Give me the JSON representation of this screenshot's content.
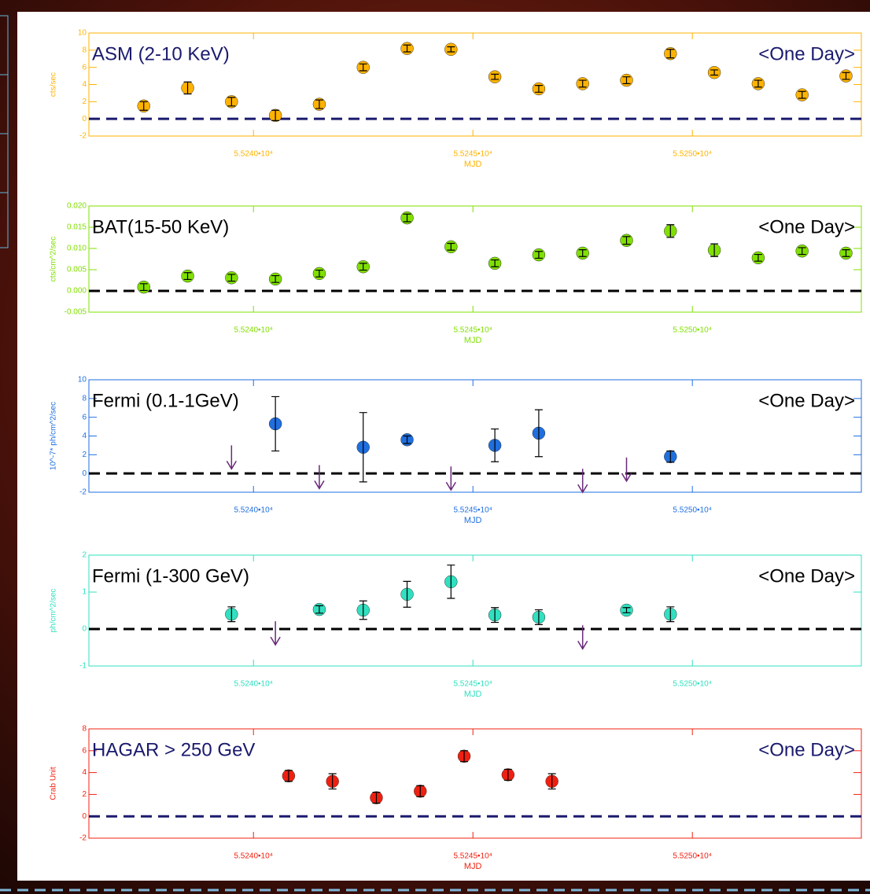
{
  "chart_data": [
    {
      "type": "errorbar",
      "title": "ASM (2-10 KeV)",
      "annotation": "<One Day>",
      "ylabel": "cts/sec",
      "xlabel": "MJD",
      "color": "#ffb300",
      "text_color": "#1a1a6e",
      "zero_line_color": "#1a1a6e",
      "xlim": [
        55236.25,
        55253.85
      ],
      "xticks": [
        {
          "value": 55240,
          "label": "5.5240•10⁴"
        },
        {
          "value": 55245,
          "label": "5.5245•10⁴"
        },
        {
          "value": 55250,
          "label": "5.5250•10⁴"
        }
      ],
      "ylim": [
        -2,
        10
      ],
      "yticks": [
        -2,
        0,
        2,
        4,
        6,
        8,
        10
      ],
      "x": [
        55237.5,
        55238.5,
        55239.5,
        55240.5,
        55241.5,
        55242.5,
        55243.5,
        55244.5,
        55245.5,
        55246.5,
        55247.5,
        55248.5,
        55249.5,
        55250.5,
        55251.5,
        55252.5,
        55253.5
      ],
      "values": [
        1.5,
        3.6,
        2.0,
        0.4,
        1.7,
        6.0,
        8.2,
        8.1,
        4.9,
        3.5,
        4.1,
        4.5,
        7.6,
        5.4,
        4.1,
        2.8,
        5.0
      ],
      "errors": [
        0.5,
        0.7,
        0.5,
        0.6,
        0.5,
        0.4,
        0.4,
        0.3,
        0.3,
        0.4,
        0.4,
        0.4,
        0.5,
        0.3,
        0.4,
        0.4,
        0.4
      ]
    },
    {
      "type": "errorbar",
      "title": "BAT(15-50 KeV)",
      "annotation": "<One Day>",
      "ylabel": "cts/cm^2/sec",
      "xlabel": "MJD",
      "color": "#80e000",
      "text_color": "#000000",
      "zero_line_color": "#000000",
      "xlim": [
        55236.25,
        55253.85
      ],
      "xticks": [
        {
          "value": 55240,
          "label": "5.5240•10⁴"
        },
        {
          "value": 55245,
          "label": "5.5245•10⁴"
        },
        {
          "value": 55250,
          "label": "5.5250•10⁴"
        }
      ],
      "ylim": [
        -0.005,
        0.02
      ],
      "yticks": [
        {
          "value": -0.005,
          "label": "-0.005"
        },
        {
          "value": 0,
          "label": "0.000"
        },
        {
          "value": 0.005,
          "label": "0.005"
        },
        {
          "value": 0.01,
          "label": "0.010"
        },
        {
          "value": 0.015,
          "label": "0.015"
        },
        {
          "value": 0.02,
          "label": "0.020"
        }
      ],
      "x": [
        55237.5,
        55238.5,
        55239.5,
        55240.5,
        55241.5,
        55242.5,
        55243.5,
        55244.5,
        55245.5,
        55246.5,
        55247.5,
        55248.5,
        55249.5,
        55250.5,
        55251.5,
        55252.5,
        55253.5
      ],
      "values": [
        0.0009,
        0.0035,
        0.0031,
        0.0028,
        0.0041,
        0.0057,
        0.0172,
        0.0104,
        0.0065,
        0.0085,
        0.0089,
        0.0119,
        0.0141,
        0.0096,
        0.0078,
        0.0094,
        0.0089
      ],
      "errors": [
        0.0008,
        0.0008,
        0.0008,
        0.0008,
        0.0008,
        0.0008,
        0.0009,
        0.0008,
        0.0008,
        0.0008,
        0.0008,
        0.0009,
        0.0015,
        0.0015,
        0.0008,
        0.0008,
        0.0008
      ]
    },
    {
      "type": "errorbar",
      "title": "Fermi (0.1-1GeV)",
      "annotation": "<One Day>",
      "ylabel": "10^-7* ph/cm^2/sec",
      "xlabel": "MJD",
      "color": "#1f6fe0",
      "text_color": "#000000",
      "zero_line_color": "#000000",
      "xlim": [
        55236.25,
        55253.85
      ],
      "xticks": [
        {
          "value": 55240,
          "label": "5.5240•10⁴"
        },
        {
          "value": 55245,
          "label": "5.5245•10⁴"
        },
        {
          "value": 55250,
          "label": "5.5250•10⁴"
        }
      ],
      "ylim": [
        -2,
        10
      ],
      "yticks": [
        -2,
        0,
        2,
        4,
        6,
        8,
        10
      ],
      "x": [
        55240.5,
        55242.5,
        55243.5,
        55245.5,
        55246.5,
        55249.5
      ],
      "values": [
        5.3,
        2.8,
        3.6,
        3.0,
        4.3,
        1.8
      ],
      "errors": [
        2.9,
        3.7,
        0.4,
        1.75,
        2.5,
        0.6
      ],
      "ul_x": [
        55239.5,
        55241.5,
        55244.5,
        55247.5,
        55248.5
      ],
      "ul_values": [
        3.0,
        0.9,
        0.75,
        0.5,
        1.7
      ]
    },
    {
      "type": "errorbar",
      "title": "Fermi (1-300 GeV)",
      "annotation": "<One Day>",
      "ylabel": "ph/cm^2/sec",
      "xlabel": "MJD",
      "color": "#30e0c0",
      "text_color": "#000000",
      "zero_line_color": "#000000",
      "xlim": [
        55236.25,
        55253.85
      ],
      "xticks": [
        {
          "value": 55240,
          "label": "5.5240•10⁴"
        },
        {
          "value": 55245,
          "label": "5.5245•10⁴"
        },
        {
          "value": 55250,
          "label": "5.5250•10⁴"
        }
      ],
      "ylim": [
        -1,
        2
      ],
      "yticks": [
        -1,
        0,
        1,
        2
      ],
      "x": [
        55239.5,
        55241.5,
        55242.5,
        55243.5,
        55244.5,
        55245.5,
        55246.5,
        55248.5,
        55249.5
      ],
      "values": [
        0.4,
        0.53,
        0.51,
        0.94,
        1.28,
        0.38,
        0.32,
        0.51,
        0.4
      ],
      "errors": [
        0.2,
        0.1,
        0.25,
        0.35,
        0.45,
        0.2,
        0.2,
        0.07,
        0.2
      ],
      "ul_x": [
        55240.5,
        55247.5
      ],
      "ul_values": [
        0.21,
        0.1
      ]
    },
    {
      "type": "errorbar",
      "title": "HAGAR > 250 GeV",
      "annotation": "<One Day>",
      "ylabel": "Crab Unit",
      "xlabel": "MJD",
      "color": "#f02010",
      "text_color": "#1a1a6e",
      "zero_line_color": "#1a1a6e",
      "xlim": [
        55236.25,
        55253.85
      ],
      "xticks": [
        {
          "value": 55240,
          "label": "5.5240•10⁴"
        },
        {
          "value": 55245,
          "label": "5.5245•10⁴"
        },
        {
          "value": 55250,
          "label": "5.5250•10⁴"
        }
      ],
      "ylim": [
        -2,
        8
      ],
      "yticks": [
        -2,
        0,
        2,
        4,
        6,
        8
      ],
      "x": [
        55240.8,
        55241.8,
        55242.8,
        55243.8,
        55244.8,
        55245.8,
        55246.8
      ],
      "values": [
        3.7,
        3.2,
        1.7,
        2.3,
        5.5,
        3.8,
        3.2
      ],
      "errors": [
        0.5,
        0.7,
        0.5,
        0.5,
        0.5,
        0.5,
        0.7
      ]
    }
  ]
}
